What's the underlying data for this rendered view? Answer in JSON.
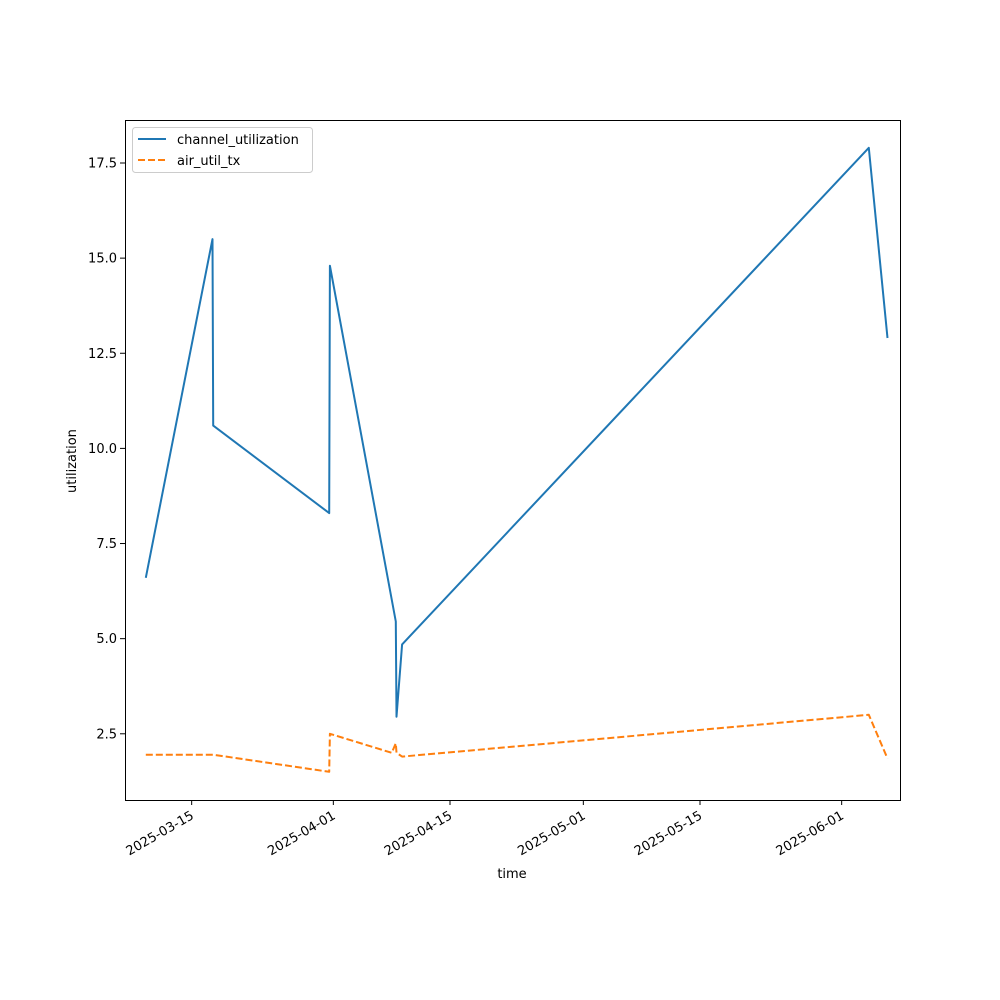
{
  "chart_data": {
    "type": "line",
    "title": "",
    "xlabel": "time",
    "ylabel": "utilization",
    "x_kind": "date",
    "xlim": [
      "2025-03-07",
      "2025-06-08"
    ],
    "ylim": [
      0.76,
      18.63
    ],
    "x_ticks": [
      "2025-03-15",
      "2025-04-01",
      "2025-04-15",
      "2025-05-01",
      "2025-05-15",
      "2025-06-01"
    ],
    "y_ticks": [
      2.5,
      5.0,
      7.5,
      10.0,
      12.5,
      15.0,
      17.5
    ],
    "y_tick_labels": [
      "2.5",
      "5.0",
      "7.5",
      "10.0",
      "12.5",
      "15.0",
      "17.5"
    ],
    "grid": false,
    "legend_position": "top-left",
    "series": [
      {
        "name": "channel_utilization",
        "color": "#1f77b4",
        "style": "solid",
        "points": [
          [
            "2025-03-09T12:00",
            6.6
          ],
          [
            "2025-03-17T12:00",
            15.5
          ],
          [
            "2025-03-17T14:00",
            10.6
          ],
          [
            "2025-03-31T12:00",
            8.3
          ],
          [
            "2025-03-31T14:00",
            14.8
          ],
          [
            "2025-04-08T12:00",
            5.45
          ],
          [
            "2025-04-08T14:00",
            2.95
          ],
          [
            "2025-04-09T06:00",
            4.85
          ],
          [
            "2025-06-04T06:00",
            17.9
          ],
          [
            "2025-06-06T12:00",
            12.9
          ]
        ]
      },
      {
        "name": "air_util_tx",
        "color": "#ff7f0e",
        "style": "dashed",
        "points": [
          [
            "2025-03-09T12:00",
            1.95
          ],
          [
            "2025-03-17T12:00",
            1.95
          ],
          [
            "2025-03-17T14:00",
            1.95
          ],
          [
            "2025-03-31T12:00",
            1.5
          ],
          [
            "2025-03-31T14:00",
            2.5
          ],
          [
            "2025-04-08T00:00",
            2.0
          ],
          [
            "2025-04-08T12:00",
            2.25
          ],
          [
            "2025-04-08T14:00",
            2.0
          ],
          [
            "2025-04-09T06:00",
            1.9
          ],
          [
            "2025-06-04T06:00",
            3.0
          ],
          [
            "2025-06-06T12:00",
            1.85
          ]
        ]
      }
    ]
  }
}
